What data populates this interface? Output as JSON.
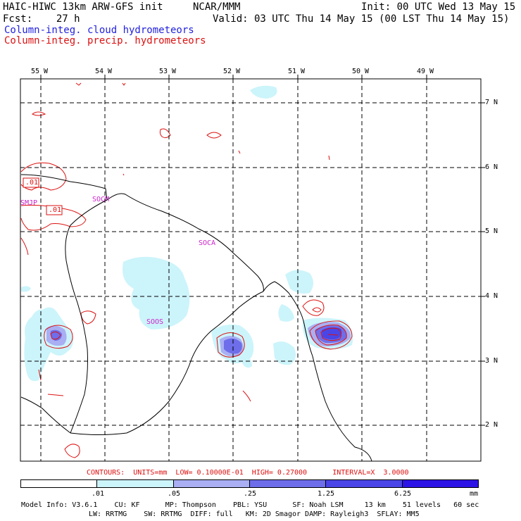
{
  "header": {
    "model_title": "HAIC-HIWC 13km ARW-GFS init",
    "org": "NCAR/MMM",
    "init": "Init: 00 UTC Wed 13 May 15",
    "fcst": "Fcst:    27 h",
    "valid": "Valid: 03 UTC Thu 14 May 15 (00 LST Thu 14 May 15)",
    "field_cloud": "Column-integ. cloud hydrometeors",
    "field_precip": "Column-integ. precip. hydrometeors"
  },
  "colors": {
    "cloud_label": "#2222dd",
    "precip_label": "#dd1111",
    "fill_levels": [
      "#ffffff",
      "#ccf4fb",
      "#a9aff2",
      "#6e6eea",
      "#4a45e6",
      "#2d14e6"
    ]
  },
  "map": {
    "lon_labels": [
      "55 W",
      "54 W",
      "53 W",
      "52 W",
      "51 W",
      "50 W",
      "49 W"
    ],
    "lat_labels": [
      "7 N",
      "6 N",
      "5 N",
      "4 N",
      "3 N",
      "2 N"
    ],
    "stations": [
      "SMJP",
      "SOCM",
      "SOCA",
      "SOOS"
    ],
    "contour_labels": [
      ".01",
      ".01"
    ]
  },
  "contours": "CONTOURS:  UNITS=mm  LOW= 0.10000E-01  HIGH= 0.27000      INTERVAL=X  3.0000",
  "colorbar": {
    "ticks": [
      ".01",
      ".05",
      ".25",
      "1.25",
      "6.25"
    ],
    "unit": "mm"
  },
  "footer": {
    "line1": "Model Info: V3.6.1    CU: KF      MP: Thompson    PBL: YSU      SF: Noah LSM     13 km    51 levels   60 sec",
    "line2": "LW: RRTMG    SW: RRTMG  DIFF: full   KM: 2D Smagor DAMP: Rayleigh3  SFLAY: MM5"
  }
}
